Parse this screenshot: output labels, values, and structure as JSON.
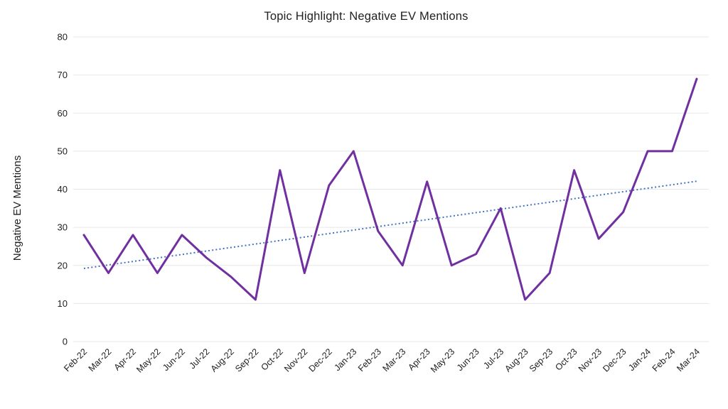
{
  "chart_data": {
    "type": "line",
    "title": "Topic Highlight: Negative EV Mentions",
    "xlabel": "",
    "ylabel": "Negative EV Mentions",
    "categories": [
      "Feb-22",
      "Mar-22",
      "Apr-22",
      "May-22",
      "Jun-22",
      "Jul-22",
      "Aug-22",
      "Sep-22",
      "Oct-22",
      "Nov-22",
      "Dec-22",
      "Jan-23",
      "Feb-23",
      "Mar-23",
      "Apr-23",
      "May-23",
      "Jun-23",
      "Jul-23",
      "Aug-23",
      "Sep-23",
      "Oct-23",
      "Nov-23",
      "Dec-23",
      "Jan-24",
      "Feb-24",
      "Mar-24"
    ],
    "series": [
      {
        "name": "Negative EV Mentions",
        "color": "#7030a0",
        "line_style": "solid",
        "values": [
          28,
          18,
          28,
          18,
          28,
          22,
          17,
          11,
          45,
          18,
          41,
          50,
          29,
          20,
          42,
          20,
          23,
          35,
          11,
          18,
          45,
          27,
          34,
          50,
          50,
          69
        ]
      }
    ],
    "trendline": {
      "name": "Linear trend",
      "color": "#4472c4",
      "line_style": "dotted",
      "start_value": 19.2,
      "end_value": 42.1
    },
    "ylim": [
      0,
      80
    ],
    "yticks": [
      0,
      10,
      20,
      30,
      40,
      50,
      60,
      70,
      80
    ],
    "grid": true,
    "gridline_color": "#e7e7e7",
    "text_color": "#212121",
    "legend_position": "none"
  }
}
